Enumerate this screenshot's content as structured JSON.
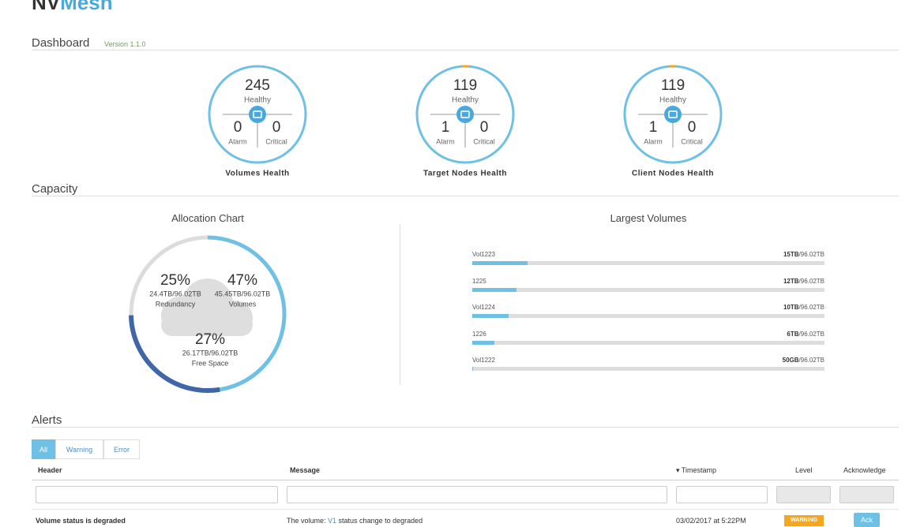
{
  "logo": {
    "part1": "NV",
    "part2": "Mesh"
  },
  "dashboard": {
    "title": "Dashboard",
    "version": "Version 1.1.0",
    "health": [
      {
        "label": "Volumes Health",
        "healthy": 245,
        "healthy_label": "Healthy",
        "alarm": 0,
        "alarm_label": "Alarm",
        "critical": 0,
        "critical_label": "Critical"
      },
      {
        "label": "Target Nodes Health",
        "healthy": 119,
        "healthy_label": "Healthy",
        "alarm": 1,
        "alarm_label": "Alarm",
        "critical": 0,
        "critical_label": "Critical"
      },
      {
        "label": "Client Nodes Health",
        "healthy": 119,
        "healthy_label": "Healthy",
        "alarm": 1,
        "alarm_label": "Alarm",
        "critical": 0,
        "critical_label": "Critical"
      }
    ]
  },
  "capacity": {
    "title": "Capacity",
    "allocation": {
      "title": "Allocation Chart",
      "segments": [
        {
          "value": 25,
          "value_label": "25%",
          "detail": "24.4TB/96.02TB",
          "name": "Redundancy",
          "color": "#dcdcdc"
        },
        {
          "value": 47,
          "value_label": "47%",
          "detail": "45.45TB/96.02TB",
          "name": "Volumes",
          "color": "#6ec1e4"
        },
        {
          "value": 27,
          "value_label": "27%",
          "detail": "26.17TB/96.02TB",
          "name": "Free Space",
          "color": "#3e66a8"
        }
      ]
    },
    "largest": {
      "title": "Largest Volumes",
      "total": 96.02,
      "bars": [
        {
          "name": "Vol1223",
          "used": 15,
          "used_label": "15TB",
          "total_label": "/96.02TB"
        },
        {
          "name": "1225",
          "used": 12,
          "used_label": "12TB",
          "total_label": "/96.02TB"
        },
        {
          "name": "Vol1224",
          "used": 10,
          "used_label": "10TB",
          "total_label": "/96.02TB"
        },
        {
          "name": "1226",
          "used": 6,
          "used_label": "6TB",
          "total_label": "/96.02TB"
        },
        {
          "name": "Vol1222",
          "used": 0.05,
          "used_label": "50GB",
          "total_label": "/96.02TB"
        }
      ]
    }
  },
  "alerts": {
    "title": "Alerts",
    "tabs": [
      "All",
      "Warning",
      "Error"
    ],
    "columns": [
      "Header",
      "Message",
      "▾ Timestamp",
      "Level",
      "Acknowledge"
    ],
    "rows": [
      {
        "header": "Volume status is degraded",
        "message_prefix": "The volume: ",
        "message_link": "V1",
        "message_suffix": " status change to degraded",
        "timestamp": "03/02/2017 at 5:22PM",
        "level": "WARNING",
        "ack": "Ack"
      }
    ]
  }
}
